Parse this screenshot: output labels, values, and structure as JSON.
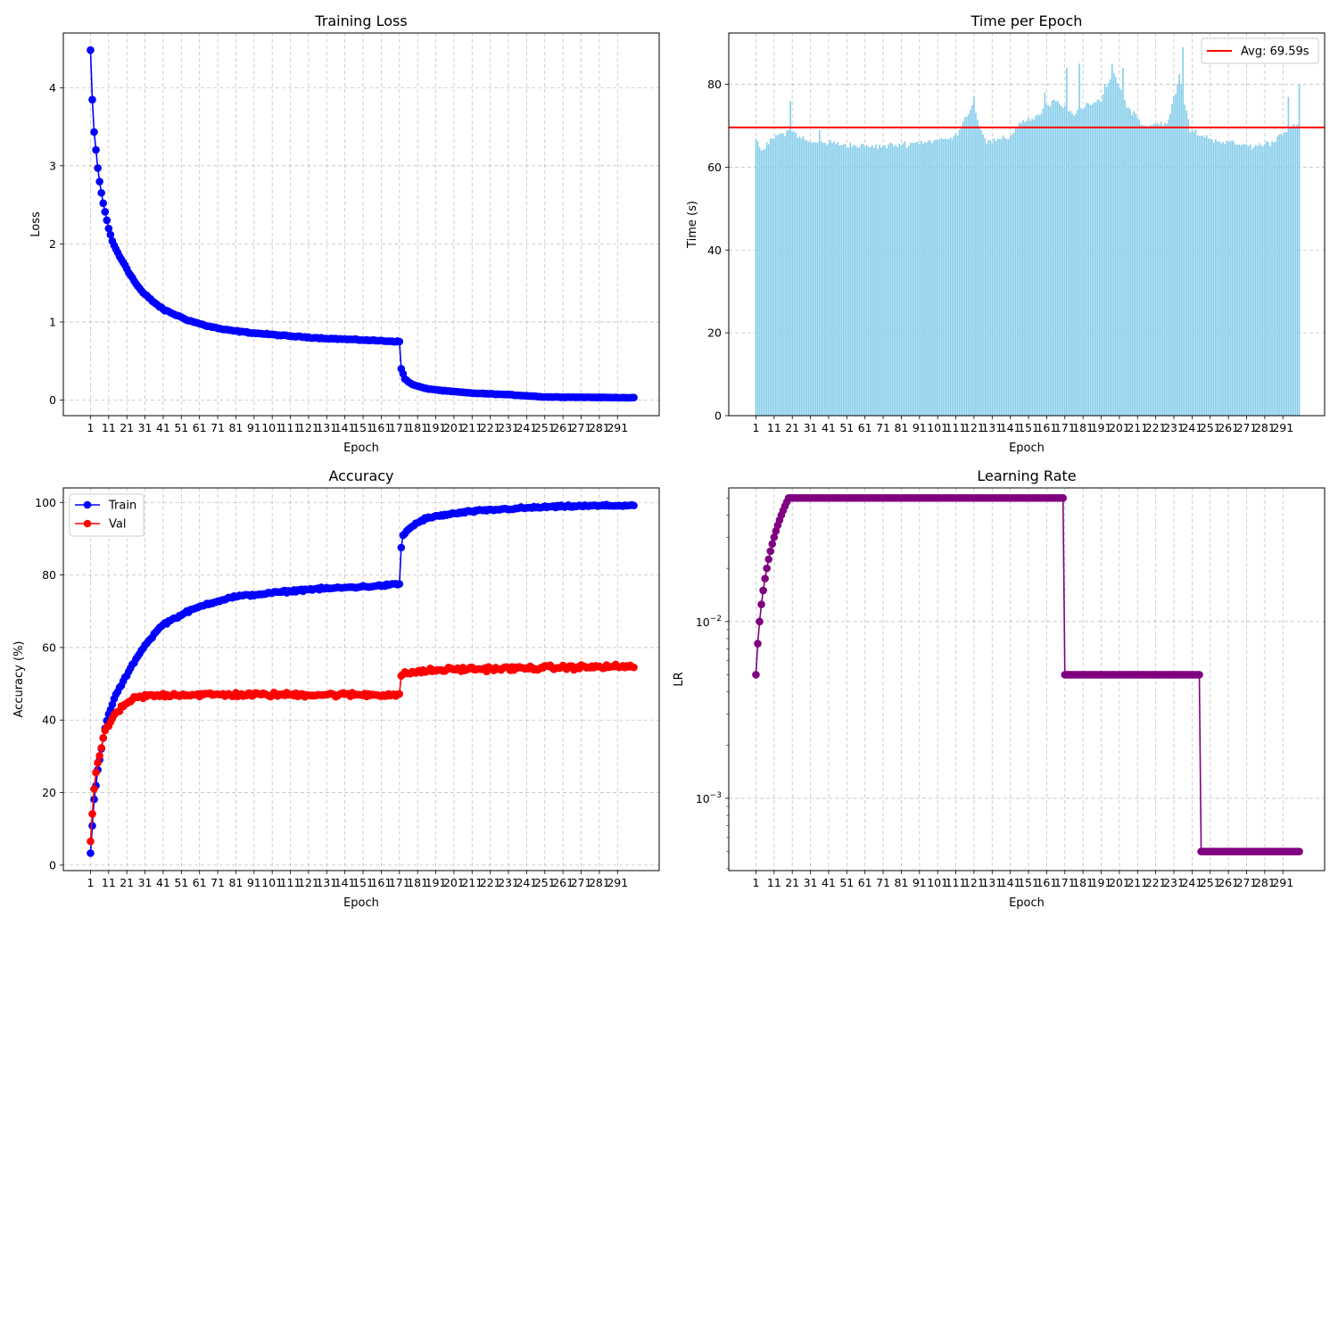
{
  "chart_data": [
    {
      "id": "loss",
      "type": "line",
      "title": "Training Loss",
      "xlabel": "Epoch",
      "ylabel": "Loss",
      "xlim": [
        -13.95,
        313.95
      ],
      "ylim": [
        -0.2,
        4.7
      ],
      "x_ticks": [
        1,
        11,
        21,
        31,
        41,
        51,
        61,
        71,
        81,
        91,
        101,
        111,
        121,
        131,
        141,
        151,
        161,
        171,
        181,
        191,
        201,
        211,
        221,
        231,
        241,
        251,
        261,
        271,
        281,
        291
      ],
      "y_ticks": [
        0,
        1,
        2,
        3,
        4
      ],
      "y_tick_labels": [
        "0",
        "1",
        "2",
        "3",
        "4"
      ],
      "grid": true,
      "series": [
        {
          "color": "#0000ff",
          "marker": "circle",
          "keypoints": [
            [
              1,
              4.48
            ],
            [
              2,
              3.84
            ],
            [
              3,
              3.43
            ],
            [
              4,
              3.2
            ],
            [
              5,
              2.97
            ],
            [
              6,
              2.8
            ],
            [
              7,
              2.65
            ],
            [
              8,
              2.52
            ],
            [
              9,
              2.41
            ],
            [
              10,
              2.3
            ],
            [
              11,
              2.2
            ],
            [
              12,
              2.12
            ],
            [
              13,
              2.03
            ],
            [
              15,
              1.93
            ],
            [
              17,
              1.84
            ],
            [
              20,
              1.73
            ],
            [
              23,
              1.6
            ],
            [
              26,
              1.49
            ],
            [
              30,
              1.37
            ],
            [
              35,
              1.27
            ],
            [
              41,
              1.16
            ],
            [
              47,
              1.1
            ],
            [
              55,
              1.02
            ],
            [
              65,
              0.95
            ],
            [
              75,
              0.9
            ],
            [
              90,
              0.86
            ],
            [
              110,
              0.82
            ],
            [
              130,
              0.79
            ],
            [
              150,
              0.77
            ],
            [
              170,
              0.75
            ],
            [
              171,
              0.75
            ],
            [
              172,
              0.4
            ],
            [
              174,
              0.27
            ],
            [
              178,
              0.2
            ],
            [
              185,
              0.15
            ],
            [
              195,
              0.12
            ],
            [
              210,
              0.09
            ],
            [
              230,
              0.07
            ],
            [
              245,
              0.05
            ],
            [
              250,
              0.04
            ],
            [
              300,
              0.03
            ]
          ],
          "noise": 0.012
        }
      ]
    },
    {
      "id": "time",
      "type": "bar",
      "title": "Time per Epoch",
      "xlabel": "Epoch",
      "ylabel": "Time (s)",
      "xlim": [
        -13.95,
        313.95
      ],
      "ylim": [
        0,
        92.4
      ],
      "x_ticks": [
        1,
        11,
        21,
        31,
        41,
        51,
        61,
        71,
        81,
        91,
        101,
        111,
        121,
        131,
        141,
        151,
        161,
        171,
        181,
        191,
        201,
        211,
        221,
        231,
        241,
        251,
        261,
        271,
        281,
        291
      ],
      "y_ticks": [
        0,
        20,
        40,
        60,
        80
      ],
      "y_tick_labels": [
        "0",
        "20",
        "40",
        "60",
        "80"
      ],
      "grid": true,
      "bar_color": "#87ceeb",
      "keypoints": [
        [
          1,
          66
        ],
        [
          5,
          64
        ],
        [
          10,
          67
        ],
        [
          20,
          69
        ],
        [
          30,
          66
        ],
        [
          40,
          66
        ],
        [
          60,
          65
        ],
        [
          70,
          65
        ],
        [
          90,
          66
        ],
        [
          110,
          67
        ],
        [
          120,
          75
        ],
        [
          128,
          66
        ],
        [
          140,
          67
        ],
        [
          147,
          71
        ],
        [
          155,
          72
        ],
        [
          165,
          76
        ],
        [
          175,
          73
        ],
        [
          190,
          76
        ],
        [
          198,
          83
        ],
        [
          205,
          75
        ],
        [
          215,
          70
        ],
        [
          228,
          71
        ],
        [
          234,
          82
        ],
        [
          240,
          69
        ],
        [
          250,
          67
        ],
        [
          260,
          66
        ],
        [
          275,
          65
        ],
        [
          285,
          66
        ],
        [
          295,
          70
        ],
        [
          300,
          70
        ]
      ],
      "spikes": [
        [
          20,
          76
        ],
        [
          36,
          69
        ],
        [
          121,
          77
        ],
        [
          160,
          78
        ],
        [
          172,
          84
        ],
        [
          179,
          85
        ],
        [
          193,
          80
        ],
        [
          197,
          85
        ],
        [
          203,
          84
        ],
        [
          236,
          89
        ],
        [
          294,
          77
        ],
        [
          300,
          80
        ]
      ],
      "average": {
        "value": 69.59,
        "label": "Avg: 69.59s",
        "color": "#ff0000"
      },
      "legend": "top-right"
    },
    {
      "id": "acc",
      "type": "line",
      "title": "Accuracy",
      "xlabel": "Epoch",
      "ylabel": "Accuracy (%)",
      "xlim": [
        -13.95,
        313.95
      ],
      "ylim": [
        -1.5,
        104
      ],
      "x_ticks": [
        1,
        11,
        21,
        31,
        41,
        51,
        61,
        71,
        81,
        91,
        101,
        111,
        121,
        131,
        141,
        151,
        161,
        171,
        181,
        191,
        201,
        211,
        221,
        231,
        241,
        251,
        261,
        271,
        281,
        291
      ],
      "y_ticks": [
        0,
        20,
        40,
        60,
        80,
        100
      ],
      "y_tick_labels": [
        "0",
        "20",
        "40",
        "60",
        "80",
        "100"
      ],
      "grid": true,
      "legend": "top-left",
      "series": [
        {
          "name": "Train",
          "color": "#0000ff",
          "marker": "circle",
          "keypoints": [
            [
              1,
              3.2
            ],
            [
              2,
              11
            ],
            [
              3,
              18
            ],
            [
              4,
              22
            ],
            [
              5,
              26
            ],
            [
              6,
              29
            ],
            [
              7,
              32
            ],
            [
              8,
              35
            ],
            [
              9,
              37.5
            ],
            [
              10,
              40
            ],
            [
              12,
              43
            ],
            [
              15,
              47
            ],
            [
              20,
              51.5
            ],
            [
              25,
              56
            ],
            [
              30,
              60
            ],
            [
              35,
              63
            ],
            [
              40,
              66
            ],
            [
              45,
              67.5
            ],
            [
              55,
              70
            ],
            [
              65,
              72
            ],
            [
              80,
              74
            ],
            [
              100,
              75
            ],
            [
              120,
              76
            ],
            [
              140,
              76.5
            ],
            [
              160,
              77
            ],
            [
              171,
              77.5
            ],
            [
              172,
              87.5
            ],
            [
              173,
              91
            ],
            [
              178,
              93.5
            ],
            [
              185,
              95.5
            ],
            [
              195,
              96.5
            ],
            [
              210,
              97.5
            ],
            [
              230,
              98.2
            ],
            [
              250,
              98.7
            ],
            [
              270,
              99
            ],
            [
              300,
              99.2
            ]
          ],
          "noise": 0.45
        },
        {
          "name": "Val",
          "color": "#ff0000",
          "marker": "circle",
          "keypoints": [
            [
              1,
              5.8
            ],
            [
              2,
              14.5
            ],
            [
              3,
              21
            ],
            [
              4,
              25
            ],
            [
              5,
              28
            ],
            [
              6,
              30.5
            ],
            [
              7,
              32.5
            ],
            [
              8,
              34.5
            ],
            [
              9,
              36.5
            ],
            [
              10,
              38
            ],
            [
              12,
              39.5
            ],
            [
              15,
              42
            ],
            [
              20,
              44
            ],
            [
              25,
              46
            ],
            [
              30,
              46.5
            ],
            [
              45,
              47
            ],
            [
              80,
              47
            ],
            [
              120,
              47
            ],
            [
              171,
              47
            ],
            [
              172,
              52
            ],
            [
              175,
              53
            ],
            [
              185,
              53.5
            ],
            [
              200,
              54
            ],
            [
              230,
              54.2
            ],
            [
              260,
              54.5
            ],
            [
              300,
              54.8
            ]
          ],
          "noise": 0.9
        }
      ]
    },
    {
      "id": "lr",
      "type": "line",
      "title": "Learning Rate",
      "xlabel": "Epoch",
      "ylabel": "LR",
      "xscale": "linear",
      "yscale": "log",
      "xlim": [
        -13.95,
        313.95
      ],
      "ylim": [
        0.00039,
        0.057
      ],
      "x_ticks": [
        1,
        11,
        21,
        31,
        41,
        51,
        61,
        71,
        81,
        91,
        101,
        111,
        121,
        131,
        141,
        151,
        161,
        171,
        181,
        191,
        201,
        211,
        221,
        231,
        241,
        251,
        261,
        271,
        281,
        291
      ],
      "y_ticks": [
        0.001,
        0.01
      ],
      "y_tick_labels": [
        "10^{-3}",
        "10^{-2}"
      ],
      "grid": true,
      "series": [
        {
          "color": "#800080",
          "marker": "circle",
          "keypoints": [
            [
              1,
              0.005
            ],
            [
              2,
              0.0075
            ],
            [
              3,
              0.01
            ],
            [
              4,
              0.0125
            ],
            [
              5,
              0.015
            ],
            [
              6,
              0.0175
            ],
            [
              7,
              0.02
            ],
            [
              8,
              0.0225
            ],
            [
              9,
              0.025
            ],
            [
              10,
              0.0275
            ],
            [
              11,
              0.03
            ],
            [
              12,
              0.0325
            ],
            [
              13,
              0.035
            ],
            [
              14,
              0.0375
            ],
            [
              15,
              0.04
            ],
            [
              16,
              0.0425
            ],
            [
              17,
              0.045
            ],
            [
              18,
              0.0475
            ],
            [
              19,
              0.05
            ],
            [
              170,
              0.05
            ],
            [
              171,
              0.005
            ],
            [
              245,
              0.005
            ],
            [
              246,
              0.0005
            ],
            [
              300,
              0.0005
            ]
          ]
        }
      ]
    }
  ]
}
